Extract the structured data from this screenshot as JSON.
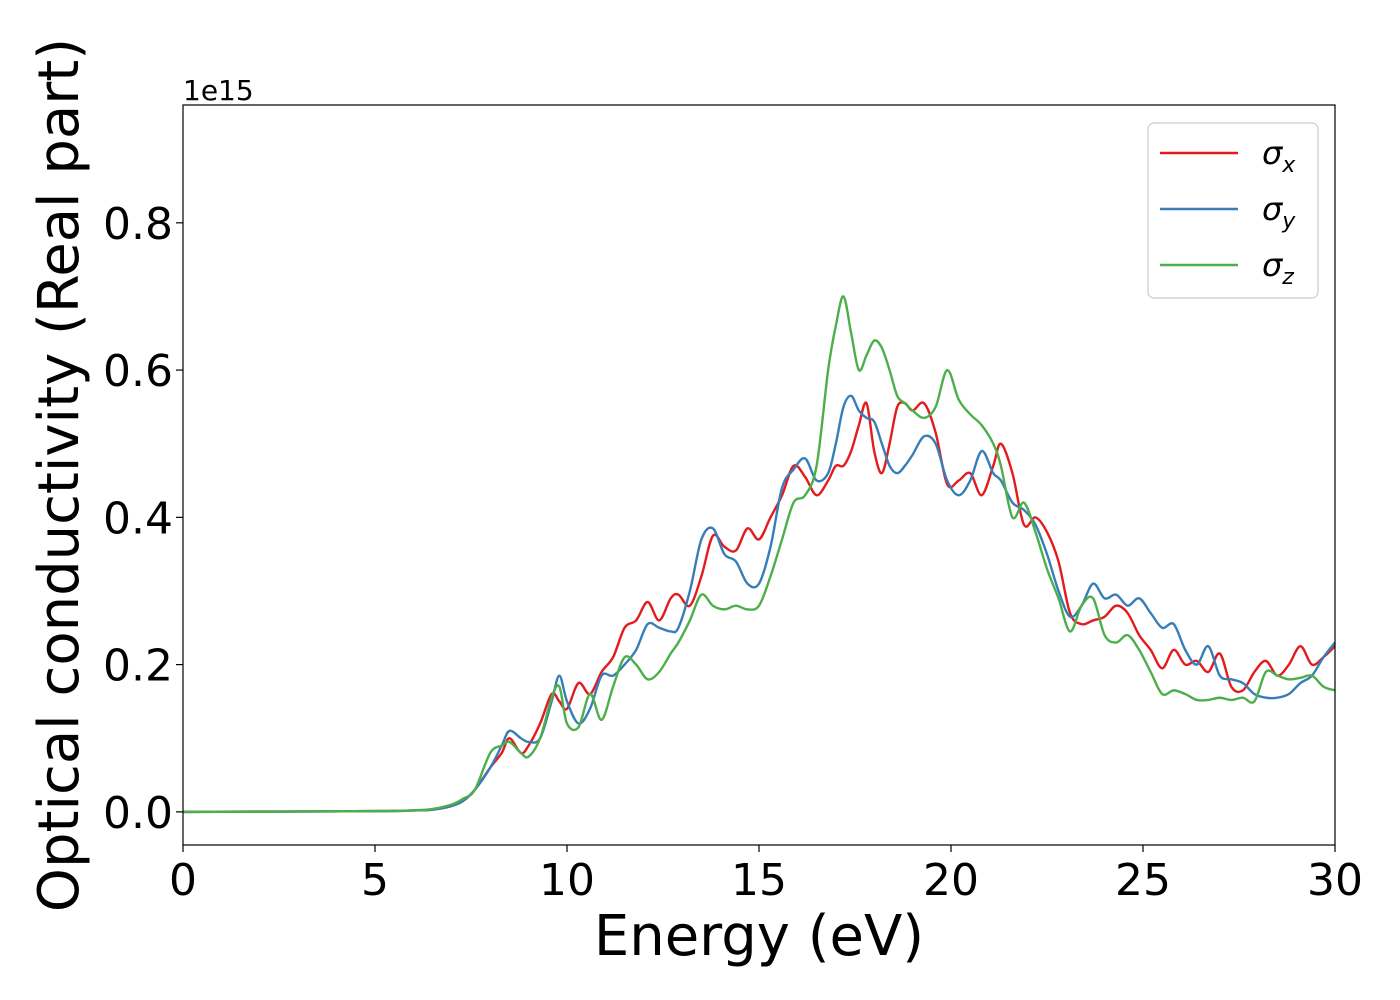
{
  "chart_data": {
    "type": "line",
    "title": "",
    "xlabel": "Energy (eV)",
    "ylabel": "Optical conductivity (Real part)",
    "y_offset_label": "1e15",
    "xlim": [
      0,
      30
    ],
    "ylim": [
      -0.045,
      0.96
    ],
    "x_ticks": [
      0,
      5,
      10,
      15,
      20,
      25,
      30
    ],
    "x_tick_labels": [
      "0",
      "5",
      "10",
      "15",
      "20",
      "25",
      "30"
    ],
    "y_ticks": [
      0.0,
      0.2,
      0.4,
      0.6,
      0.8
    ],
    "y_tick_labels": [
      "0.0",
      "0.2",
      "0.4",
      "0.6",
      "0.8"
    ],
    "grid": false,
    "legend_position": "top-right",
    "series": [
      {
        "name": "σx",
        "symbol": "σ",
        "subscript": "x",
        "color": "#e41a1c",
        "x": [
          0,
          5,
          6,
          6.5,
          7,
          7.3,
          7.6,
          8,
          8.3,
          8.5,
          8.8,
          9,
          9.3,
          9.6,
          9.8,
          10,
          10.3,
          10.6,
          10.9,
          11.2,
          11.5,
          11.8,
          12.1,
          12.4,
          12.7,
          12.9,
          13.2,
          13.5,
          13.8,
          14.1,
          14.4,
          14.7,
          15,
          15.3,
          15.6,
          15.9,
          16.2,
          16.5,
          16.8,
          17,
          17.2,
          17.4,
          17.6,
          17.8,
          18,
          18.2,
          18.4,
          18.6,
          18.8,
          19,
          19.3,
          19.6,
          19.9,
          20.2,
          20.5,
          20.8,
          21.1,
          21.3,
          21.6,
          21.9,
          22.2,
          22.5,
          22.8,
          23.1,
          23.4,
          23.7,
          24,
          24.3,
          24.6,
          24.9,
          25.2,
          25.5,
          25.8,
          26.1,
          26.4,
          26.7,
          27,
          27.3,
          27.6,
          27.9,
          28.2,
          28.5,
          28.8,
          29.1,
          29.4,
          29.7,
          30
        ],
        "y": [
          0.0,
          0.001,
          0.002,
          0.003,
          0.008,
          0.015,
          0.03,
          0.06,
          0.08,
          0.1,
          0.08,
          0.09,
          0.12,
          0.16,
          0.15,
          0.14,
          0.175,
          0.16,
          0.19,
          0.21,
          0.25,
          0.26,
          0.285,
          0.26,
          0.29,
          0.295,
          0.28,
          0.32,
          0.375,
          0.36,
          0.355,
          0.385,
          0.37,
          0.4,
          0.43,
          0.47,
          0.455,
          0.43,
          0.45,
          0.47,
          0.47,
          0.49,
          0.525,
          0.555,
          0.49,
          0.46,
          0.5,
          0.55,
          0.555,
          0.545,
          0.555,
          0.515,
          0.445,
          0.45,
          0.46,
          0.43,
          0.47,
          0.5,
          0.46,
          0.39,
          0.4,
          0.38,
          0.34,
          0.27,
          0.255,
          0.26,
          0.265,
          0.28,
          0.27,
          0.24,
          0.22,
          0.195,
          0.22,
          0.2,
          0.205,
          0.19,
          0.215,
          0.17,
          0.165,
          0.19,
          0.205,
          0.185,
          0.2,
          0.225,
          0.2,
          0.21,
          0.225
        ]
      },
      {
        "name": "σy",
        "symbol": "σ",
        "subscript": "y",
        "color": "#377eb8",
        "x": [
          0,
          5,
          6,
          6.5,
          7,
          7.3,
          7.6,
          8,
          8.3,
          8.5,
          8.8,
          9,
          9.3,
          9.6,
          9.8,
          10,
          10.3,
          10.6,
          10.9,
          11.2,
          11.5,
          11.8,
          12.1,
          12.4,
          12.7,
          12.9,
          13.2,
          13.5,
          13.8,
          14.1,
          14.4,
          14.7,
          15,
          15.3,
          15.6,
          15.9,
          16.2,
          16.5,
          16.8,
          17,
          17.2,
          17.4,
          17.6,
          17.8,
          18,
          18.2,
          18.4,
          18.6,
          18.8,
          19,
          19.3,
          19.6,
          19.9,
          20.2,
          20.5,
          20.8,
          21.1,
          21.3,
          21.6,
          21.9,
          22.2,
          22.5,
          22.8,
          23.1,
          23.4,
          23.7,
          24,
          24.3,
          24.6,
          24.9,
          25.2,
          25.5,
          25.8,
          26.1,
          26.4,
          26.7,
          27,
          27.3,
          27.6,
          27.9,
          28.2,
          28.5,
          28.8,
          29.1,
          29.4,
          29.7,
          30
        ],
        "y": [
          0.0,
          0.001,
          0.002,
          0.003,
          0.008,
          0.015,
          0.03,
          0.06,
          0.09,
          0.11,
          0.1,
          0.095,
          0.1,
          0.15,
          0.185,
          0.15,
          0.12,
          0.14,
          0.185,
          0.185,
          0.2,
          0.22,
          0.255,
          0.25,
          0.245,
          0.25,
          0.3,
          0.37,
          0.385,
          0.35,
          0.34,
          0.31,
          0.31,
          0.36,
          0.44,
          0.465,
          0.48,
          0.45,
          0.46,
          0.5,
          0.55,
          0.565,
          0.545,
          0.535,
          0.53,
          0.5,
          0.47,
          0.46,
          0.47,
          0.485,
          0.51,
          0.5,
          0.45,
          0.43,
          0.45,
          0.49,
          0.46,
          0.45,
          0.42,
          0.41,
          0.39,
          0.35,
          0.3,
          0.265,
          0.28,
          0.31,
          0.29,
          0.295,
          0.28,
          0.29,
          0.27,
          0.25,
          0.255,
          0.22,
          0.2,
          0.225,
          0.185,
          0.18,
          0.175,
          0.16,
          0.155,
          0.155,
          0.16,
          0.175,
          0.185,
          0.21,
          0.23
        ]
      },
      {
        "name": "σz",
        "symbol": "σ",
        "subscript": "z",
        "color": "#4daf4a",
        "x": [
          0,
          5,
          6,
          6.5,
          7,
          7.3,
          7.6,
          8,
          8.3,
          8.5,
          8.8,
          9,
          9.3,
          9.6,
          9.8,
          10,
          10.3,
          10.6,
          10.9,
          11.2,
          11.5,
          11.8,
          12.1,
          12.4,
          12.7,
          12.9,
          13.2,
          13.5,
          13.8,
          14.1,
          14.4,
          14.7,
          15,
          15.3,
          15.6,
          15.9,
          16.2,
          16.5,
          16.8,
          17,
          17.2,
          17.4,
          17.6,
          17.8,
          18,
          18.2,
          18.4,
          18.6,
          18.8,
          19,
          19.3,
          19.6,
          19.9,
          20.2,
          20.5,
          20.8,
          21.1,
          21.3,
          21.6,
          21.9,
          22.2,
          22.5,
          22.8,
          23.1,
          23.4,
          23.7,
          24,
          24.3,
          24.6,
          24.9,
          25.2,
          25.5,
          25.8,
          26.1,
          26.4,
          26.7,
          27,
          27.3,
          27.6,
          27.9,
          28.2,
          28.5,
          28.8,
          29.1,
          29.4,
          29.7,
          30
        ],
        "y": [
          0.0,
          0.001,
          0.002,
          0.004,
          0.01,
          0.018,
          0.03,
          0.08,
          0.09,
          0.095,
          0.08,
          0.075,
          0.1,
          0.155,
          0.17,
          0.12,
          0.115,
          0.16,
          0.125,
          0.17,
          0.21,
          0.2,
          0.18,
          0.19,
          0.215,
          0.23,
          0.26,
          0.295,
          0.28,
          0.275,
          0.28,
          0.275,
          0.28,
          0.32,
          0.37,
          0.42,
          0.43,
          0.47,
          0.6,
          0.66,
          0.7,
          0.65,
          0.6,
          0.62,
          0.64,
          0.63,
          0.6,
          0.565,
          0.555,
          0.545,
          0.535,
          0.55,
          0.6,
          0.56,
          0.54,
          0.525,
          0.5,
          0.47,
          0.4,
          0.42,
          0.38,
          0.33,
          0.29,
          0.245,
          0.28,
          0.29,
          0.24,
          0.23,
          0.24,
          0.22,
          0.19,
          0.16,
          0.165,
          0.16,
          0.152,
          0.152,
          0.155,
          0.152,
          0.155,
          0.15,
          0.19,
          0.185,
          0.18,
          0.182,
          0.185,
          0.17,
          0.165
        ]
      }
    ]
  }
}
